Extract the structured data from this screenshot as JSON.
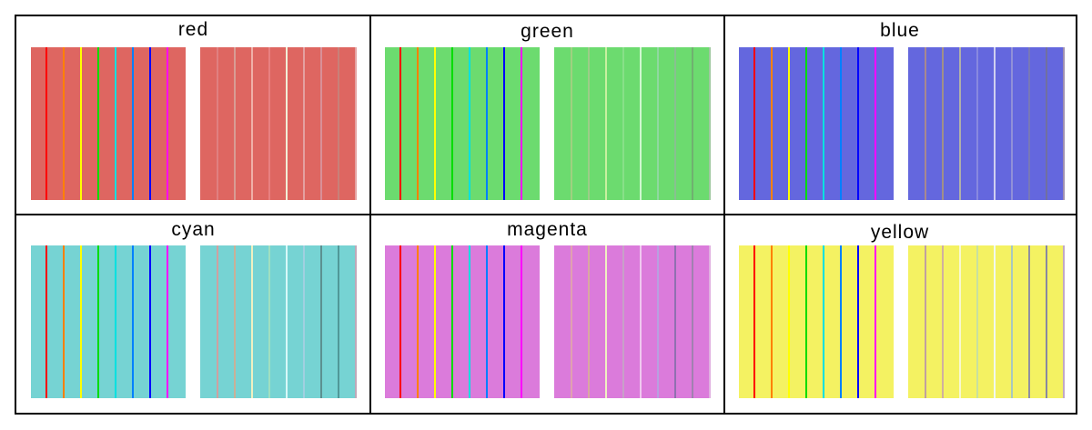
{
  "stripe_colors": [
    "#ff0000",
    "#ff8000",
    "#ffff00",
    "#00dd00",
    "#00e0e0",
    "#0080ff",
    "#0000ff",
    "#ff00ff"
  ],
  "panels": [
    {
      "title": "red",
      "bg": "#de6661",
      "stripes_right": [
        "#e08080",
        "#d89c94",
        "#f0b0a8",
        "#e88080",
        "#f0f0d8",
        "#e4a0a0",
        "#d89098",
        "#c88078",
        "#e4a4a4"
      ]
    },
    {
      "title": "green",
      "bg": "#6cdb6f",
      "stripes_right": [
        "#a0d080",
        "#9ccc88",
        "#c8f0a0",
        "#88e088",
        "#d0f8d0",
        "#90d8a0",
        "#88c090",
        "#70b070",
        "#a0c8a0"
      ]
    },
    {
      "title": "blue",
      "bg": "#6467de",
      "stripes_right": [
        "#a88890",
        "#a09088",
        "#b0b0a8",
        "#8888e0",
        "#d0d0f0",
        "#9090d8",
        "#7878b8",
        "#7070a0",
        "#a090b0"
      ]
    },
    {
      "title": "cyan",
      "bg": "#76d3d3",
      "stripes_right": [
        "#d0a0a0",
        "#c8b098",
        "#f0f0c0",
        "#a0e0c0",
        "#d8f8f8",
        "#a0d0e0",
        "#5c9090",
        "#509898",
        "#c0a8b8"
      ]
    },
    {
      "title": "magenta",
      "bg": "#db7bdb",
      "stripes_right": [
        "#e0a0b0",
        "#d8a8a0",
        "#f0f0c0",
        "#c8a0c8",
        "#f0c8f0",
        "#b8a0e0",
        "#9070b0",
        "#a080b0",
        "#e0b0e0"
      ]
    },
    {
      "title": "yellow",
      "bg": "#f4f262",
      "stripes_right": [
        "#c0a0a0",
        "#d0b0a0",
        "#f8f8d0",
        "#c8e0a0",
        "#f0f8f0",
        "#a8c8c0",
        "#9090a0",
        "#8888a0",
        "#c0a8c8"
      ]
    }
  ]
}
